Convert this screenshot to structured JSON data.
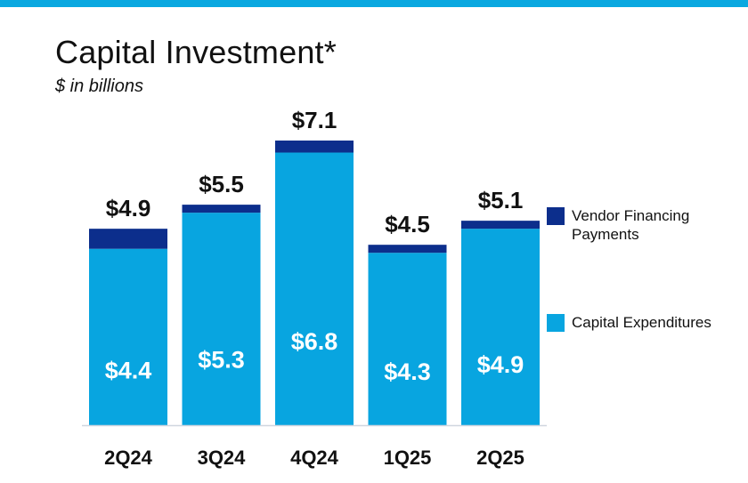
{
  "title": "Capital Investment*",
  "subtitle": "$ in billions",
  "colors": {
    "accent_bar": "#0aa8e0",
    "capex": "#08a5e0",
    "vendor": "#0c2e8c"
  },
  "legend": {
    "vendor_label": "Vendor Financing Payments",
    "capex_label": "Capital Expenditures"
  },
  "chart_data": {
    "type": "bar",
    "stacked": true,
    "title": "Capital Investment*",
    "subtitle": "$ in billions",
    "categories": [
      "2Q24",
      "3Q24",
      "4Q24",
      "1Q25",
      "2Q25"
    ],
    "series": [
      {
        "name": "Capital Expenditures",
        "values": [
          4.4,
          5.3,
          6.8,
          4.3,
          4.9
        ],
        "labels": [
          "$4.4",
          "$5.3",
          "$6.8",
          "$4.3",
          "$4.9"
        ]
      },
      {
        "name": "Vendor Financing Payments",
        "values": [
          0.5,
          0.2,
          0.3,
          0.2,
          0.2
        ]
      }
    ],
    "totals": [
      4.9,
      5.5,
      7.1,
      4.5,
      5.1
    ],
    "total_labels": [
      "$4.9",
      "$5.5",
      "$7.1",
      "$4.5",
      "$5.1"
    ],
    "ylim": [
      0,
      7.1
    ],
    "grid": false,
    "legend_position": "right"
  }
}
